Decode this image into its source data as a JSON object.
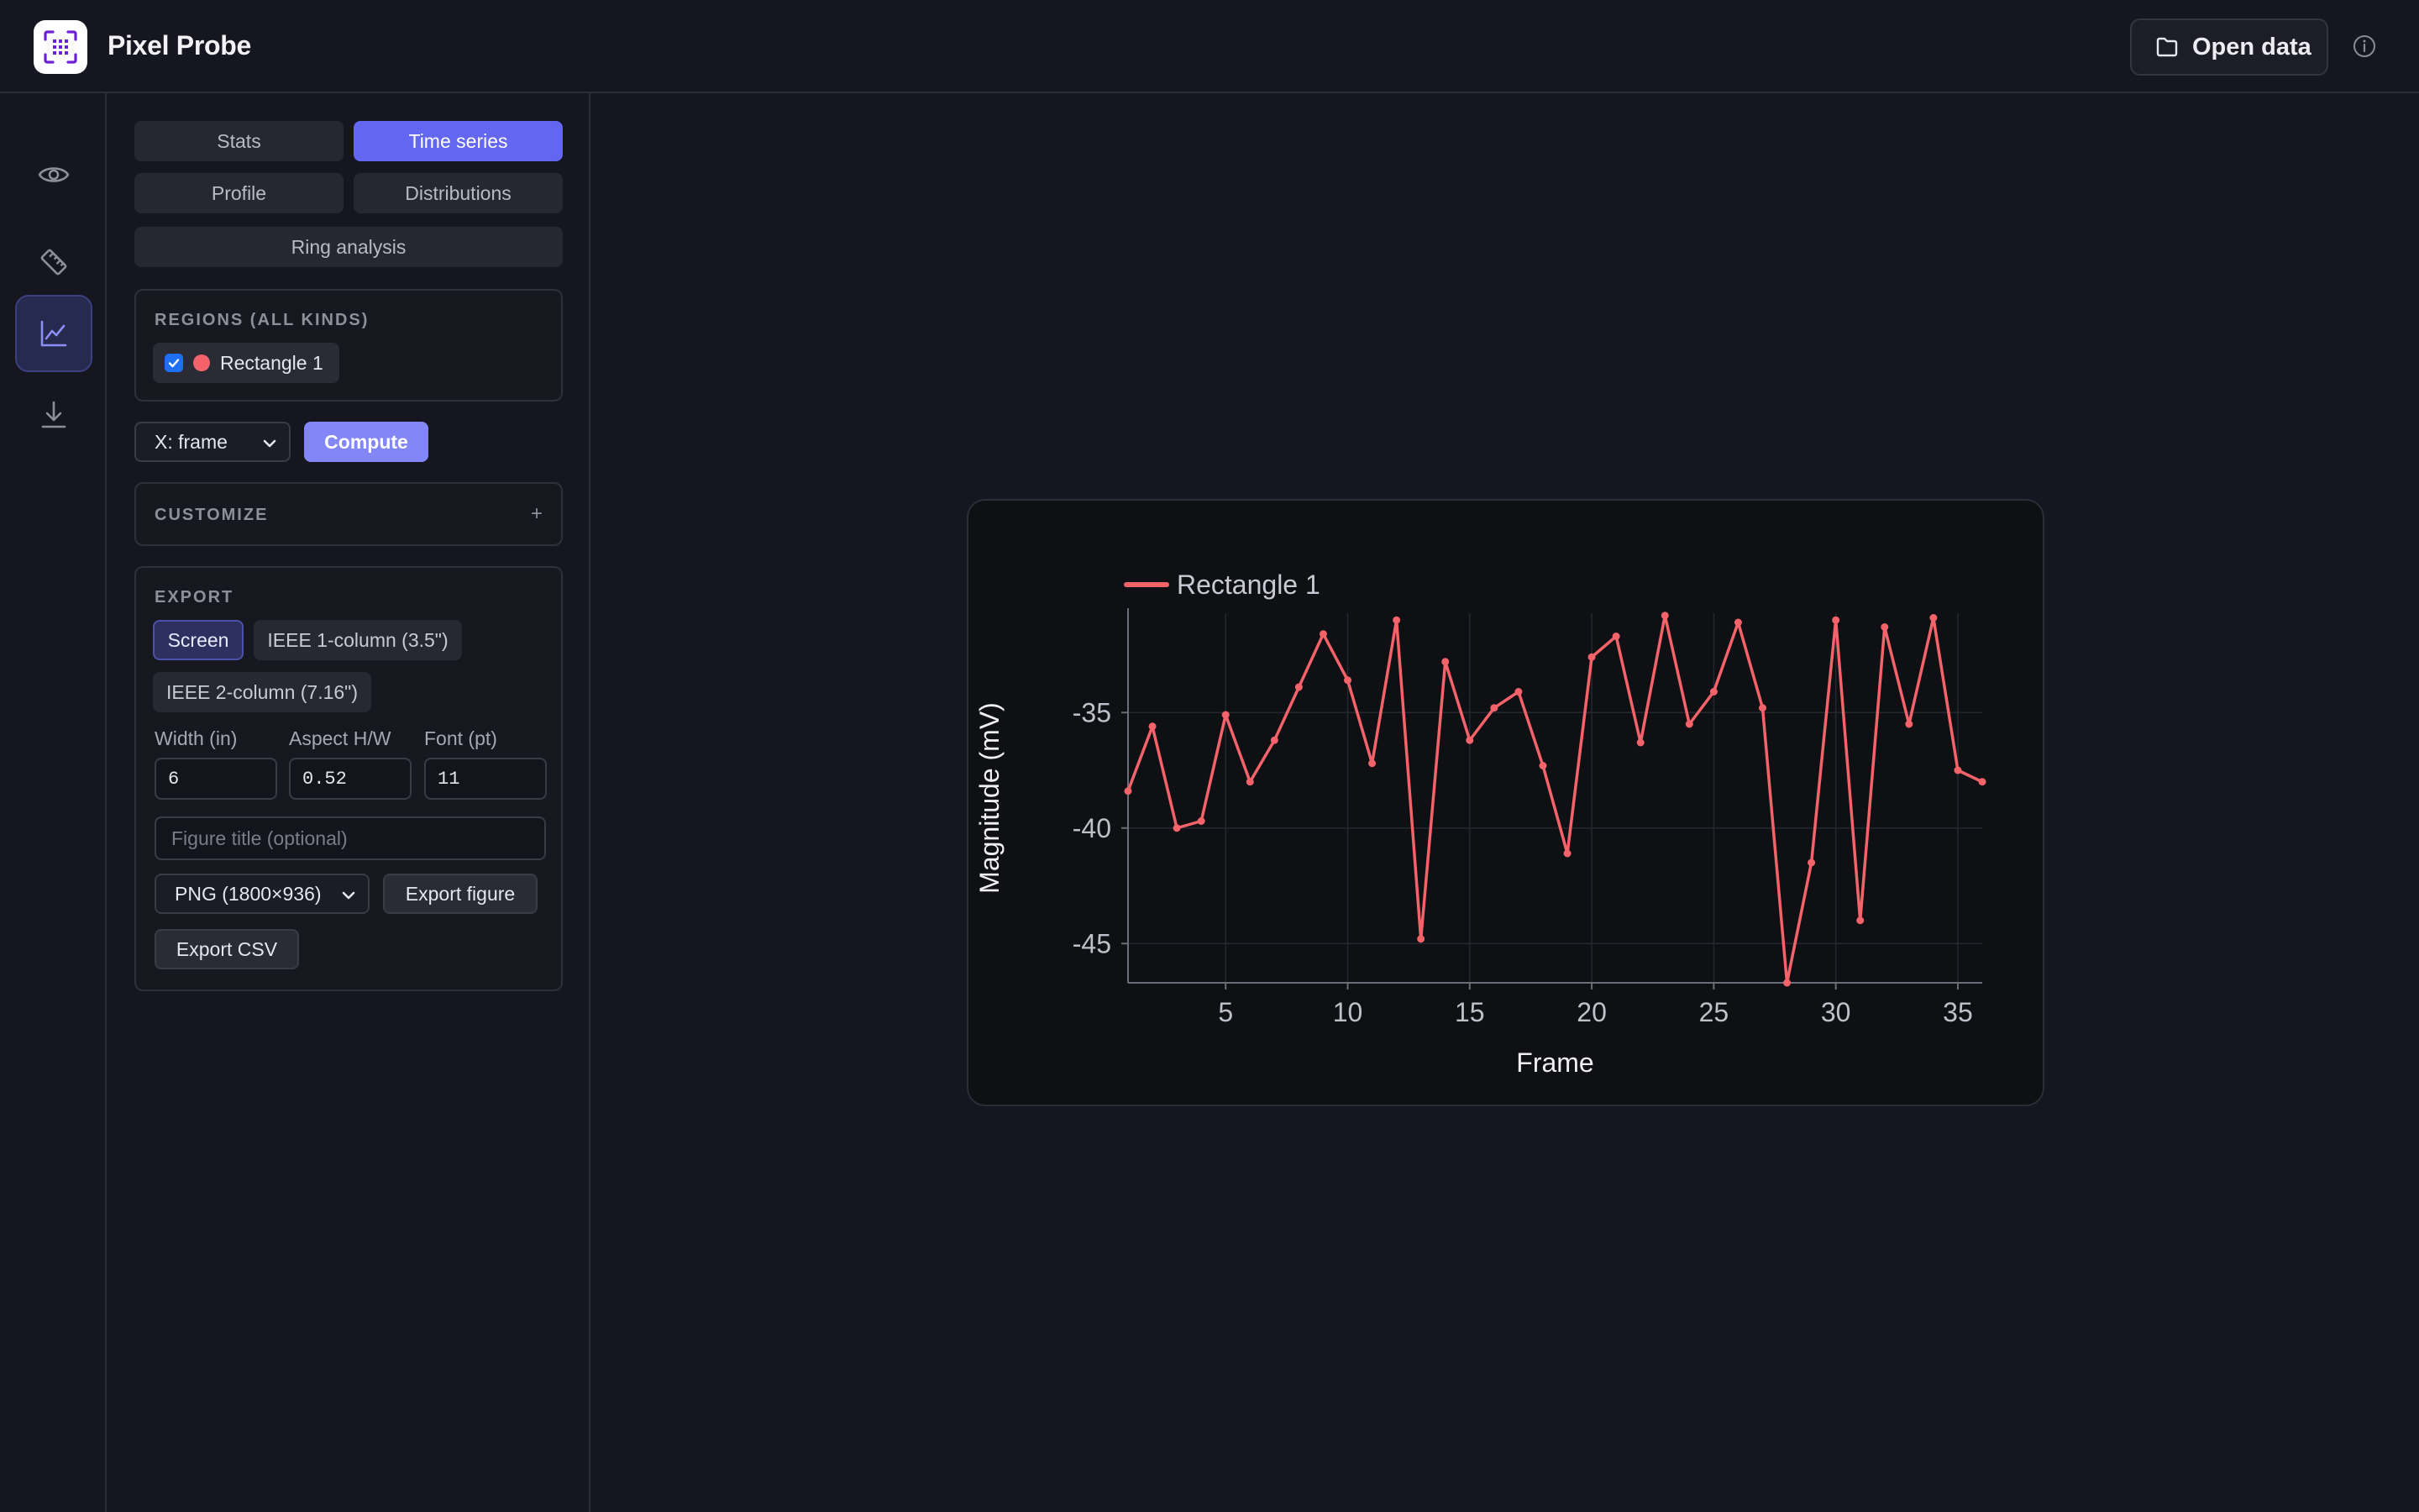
{
  "app": {
    "title": "Pixel Probe"
  },
  "header": {
    "open_data_label": "Open data"
  },
  "rail": {
    "items": [
      "eye-icon",
      "ruler-icon",
      "chart-line-icon",
      "download-icon"
    ],
    "active": "chart-line-icon"
  },
  "tabs": {
    "items": [
      "Stats",
      "Time series",
      "Profile",
      "Distributions",
      "Ring analysis"
    ],
    "active": "Time series"
  },
  "regions": {
    "label": "REGIONS (ALL KINDS)",
    "items": [
      {
        "label": "Rectangle 1",
        "checked": true,
        "color": "#f4626a"
      }
    ]
  },
  "x_axis_select": {
    "value": "X: frame"
  },
  "compute_label": "Compute",
  "customize": {
    "label": "CUSTOMIZE",
    "toggle": "+"
  },
  "export": {
    "label": "EXPORT",
    "presets": [
      "Screen",
      "IEEE 1-column (3.5\")",
      "IEEE 2-column (7.16\")"
    ],
    "active_preset": "Screen",
    "width_label": "Width (in)",
    "width_value": "6",
    "aspect_label": "Aspect H/W",
    "aspect_value": "0.52",
    "font_label": "Font (pt)",
    "font_value": "11",
    "title_placeholder": "Figure title (optional)",
    "format_value": "PNG (1800×936)",
    "export_figure_label": "Export figure",
    "export_csv_label": "Export CSV"
  },
  "colors": {
    "accent": "#6366f1",
    "series": "#f4626a",
    "background": "#15161f"
  },
  "chart_data": {
    "type": "line",
    "xlabel": "Frame",
    "ylabel": "Magnitude (mV)",
    "legend": "top-left",
    "grid": true,
    "xlim": [
      1,
      36
    ],
    "ylim": [
      -46.7,
      -30.7
    ],
    "xticks": [
      5,
      10,
      15,
      20,
      25,
      30,
      35
    ],
    "yticks": [
      -35,
      -40,
      -45
    ],
    "series": [
      {
        "name": "Rectangle 1",
        "color": "#f4626a",
        "x": [
          1,
          2,
          3,
          4,
          5,
          6,
          7,
          8,
          9,
          10,
          11,
          12,
          13,
          14,
          15,
          16,
          17,
          18,
          19,
          20,
          21,
          22,
          23,
          24,
          25,
          26,
          27,
          28,
          29,
          30,
          31,
          32,
          33,
          34,
          35,
          36
        ],
        "y": [
          -38.4,
          -35.6,
          -40.0,
          -39.7,
          -35.1,
          -38.0,
          -36.2,
          -33.9,
          -31.6,
          -33.6,
          -37.2,
          -31.0,
          -44.8,
          -32.8,
          -36.2,
          -34.8,
          -34.1,
          -37.3,
          -41.1,
          -32.6,
          -31.7,
          -36.3,
          -30.8,
          -35.5,
          -34.1,
          -31.1,
          -34.8,
          -46.7,
          -41.5,
          -31.0,
          -44.0,
          -31.3,
          -35.5,
          -30.9,
          -37.5,
          -38.0
        ]
      }
    ]
  }
}
